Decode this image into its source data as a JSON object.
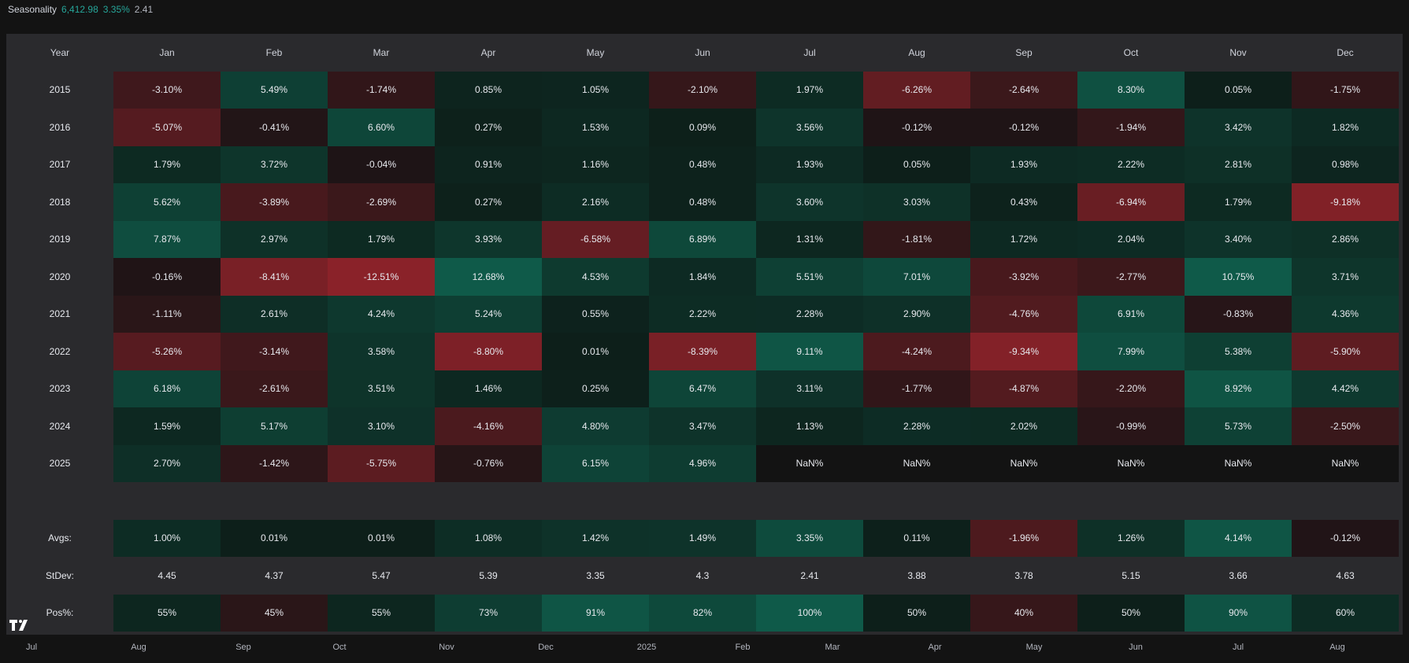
{
  "topbar": {
    "title": "Seasonality",
    "price": "6,412.98",
    "pct": "3.35%",
    "extra": "2.41"
  },
  "headers": [
    "Year",
    "Jan",
    "Feb",
    "Mar",
    "Apr",
    "May",
    "Jun",
    "Jul",
    "Aug",
    "Sep",
    "Oct",
    "Nov",
    "Dec"
  ],
  "rows": [
    {
      "label": "2015",
      "values": [
        "-3.10%",
        "5.49%",
        "-1.74%",
        "0.85%",
        "1.05%",
        "-2.10%",
        "1.97%",
        "-6.26%",
        "-2.64%",
        "8.30%",
        "0.05%",
        "-1.75%"
      ],
      "nums": [
        -3.1,
        5.49,
        -1.74,
        0.85,
        1.05,
        -2.1,
        1.97,
        -6.26,
        -2.64,
        8.3,
        0.05,
        -1.75
      ]
    },
    {
      "label": "2016",
      "values": [
        "-5.07%",
        "-0.41%",
        "6.60%",
        "0.27%",
        "1.53%",
        "0.09%",
        "3.56%",
        "-0.12%",
        "-0.12%",
        "-1.94%",
        "3.42%",
        "1.82%"
      ],
      "nums": [
        -5.07,
        -0.41,
        6.6,
        0.27,
        1.53,
        0.09,
        3.56,
        -0.12,
        -0.12,
        -1.94,
        3.42,
        1.82
      ]
    },
    {
      "label": "2017",
      "values": [
        "1.79%",
        "3.72%",
        "-0.04%",
        "0.91%",
        "1.16%",
        "0.48%",
        "1.93%",
        "0.05%",
        "1.93%",
        "2.22%",
        "2.81%",
        "0.98%"
      ],
      "nums": [
        1.79,
        3.72,
        -0.04,
        0.91,
        1.16,
        0.48,
        1.93,
        0.05,
        1.93,
        2.22,
        2.81,
        0.98
      ]
    },
    {
      "label": "2018",
      "values": [
        "5.62%",
        "-3.89%",
        "-2.69%",
        "0.27%",
        "2.16%",
        "0.48%",
        "3.60%",
        "3.03%",
        "0.43%",
        "-6.94%",
        "1.79%",
        "-9.18%"
      ],
      "nums": [
        5.62,
        -3.89,
        -2.69,
        0.27,
        2.16,
        0.48,
        3.6,
        3.03,
        0.43,
        -6.94,
        1.79,
        -9.18
      ]
    },
    {
      "label": "2019",
      "values": [
        "7.87%",
        "2.97%",
        "1.79%",
        "3.93%",
        "-6.58%",
        "6.89%",
        "1.31%",
        "-1.81%",
        "1.72%",
        "2.04%",
        "3.40%",
        "2.86%"
      ],
      "nums": [
        7.87,
        2.97,
        1.79,
        3.93,
        -6.58,
        6.89,
        1.31,
        -1.81,
        1.72,
        2.04,
        3.4,
        2.86
      ]
    },
    {
      "label": "2020",
      "values": [
        "-0.16%",
        "-8.41%",
        "-12.51%",
        "12.68%",
        "4.53%",
        "1.84%",
        "5.51%",
        "7.01%",
        "-3.92%",
        "-2.77%",
        "10.75%",
        "3.71%"
      ],
      "nums": [
        -0.16,
        -8.41,
        -12.51,
        12.68,
        4.53,
        1.84,
        5.51,
        7.01,
        -3.92,
        -2.77,
        10.75,
        3.71
      ]
    },
    {
      "label": "2021",
      "values": [
        "-1.11%",
        "2.61%",
        "4.24%",
        "5.24%",
        "0.55%",
        "2.22%",
        "2.28%",
        "2.90%",
        "-4.76%",
        "6.91%",
        "-0.83%",
        "4.36%"
      ],
      "nums": [
        -1.11,
        2.61,
        4.24,
        5.24,
        0.55,
        2.22,
        2.28,
        2.9,
        -4.76,
        6.91,
        -0.83,
        4.36
      ]
    },
    {
      "label": "2022",
      "values": [
        "-5.26%",
        "-3.14%",
        "3.58%",
        "-8.80%",
        "0.01%",
        "-8.39%",
        "9.11%",
        "-4.24%",
        "-9.34%",
        "7.99%",
        "5.38%",
        "-5.90%"
      ],
      "nums": [
        -5.26,
        -3.14,
        3.58,
        -8.8,
        0.01,
        -8.39,
        9.11,
        -4.24,
        -9.34,
        7.99,
        5.38,
        -5.9
      ]
    },
    {
      "label": "2023",
      "values": [
        "6.18%",
        "-2.61%",
        "3.51%",
        "1.46%",
        "0.25%",
        "6.47%",
        "3.11%",
        "-1.77%",
        "-4.87%",
        "-2.20%",
        "8.92%",
        "4.42%"
      ],
      "nums": [
        6.18,
        -2.61,
        3.51,
        1.46,
        0.25,
        6.47,
        3.11,
        -1.77,
        -4.87,
        -2.2,
        8.92,
        4.42
      ]
    },
    {
      "label": "2024",
      "values": [
        "1.59%",
        "5.17%",
        "3.10%",
        "-4.16%",
        "4.80%",
        "3.47%",
        "1.13%",
        "2.28%",
        "2.02%",
        "-0.99%",
        "5.73%",
        "-2.50%"
      ],
      "nums": [
        1.59,
        5.17,
        3.1,
        -4.16,
        4.8,
        3.47,
        1.13,
        2.28,
        2.02,
        -0.99,
        5.73,
        -2.5
      ]
    },
    {
      "label": "2025",
      "values": [
        "2.70%",
        "-1.42%",
        "-5.75%",
        "-0.76%",
        "6.15%",
        "4.96%",
        "NaN%",
        "NaN%",
        "NaN%",
        "NaN%",
        "NaN%",
        "NaN%"
      ],
      "nums": [
        2.7,
        -1.42,
        -5.75,
        -0.76,
        6.15,
        4.96,
        null,
        null,
        null,
        null,
        null,
        null
      ]
    }
  ],
  "stats": [
    {
      "label": "Avgs:",
      "values": [
        "1.00%",
        "0.01%",
        "0.01%",
        "1.08%",
        "1.42%",
        "1.49%",
        "3.35%",
        "0.11%",
        "-1.96%",
        "1.26%",
        "4.14%",
        "-0.12%"
      ],
      "nums": [
        1.0,
        0.01,
        0.01,
        1.08,
        1.42,
        1.49,
        3.35,
        0.11,
        -1.96,
        1.26,
        4.14,
        -0.12
      ],
      "colored": true
    },
    {
      "label": "StDev:",
      "values": [
        "4.45",
        "4.37",
        "5.47",
        "5.39",
        "3.35",
        "4.3",
        "2.41",
        "3.88",
        "3.78",
        "5.15",
        "3.66",
        "4.63"
      ],
      "colored": false
    },
    {
      "label": "Pos%:",
      "values": [
        "55%",
        "45%",
        "55%",
        "73%",
        "91%",
        "82%",
        "100%",
        "50%",
        "40%",
        "50%",
        "90%",
        "60%"
      ],
      "nums": [
        55,
        45,
        55,
        73,
        91,
        82,
        100,
        50,
        40,
        50,
        90,
        60
      ],
      "colored": true,
      "pos": true
    }
  ],
  "xaxis": [
    "Jul",
    "Aug",
    "Sep",
    "Oct",
    "Nov",
    "Dec",
    "2025",
    "Feb",
    "Mar",
    "Apr",
    "May",
    "Jun",
    "Jul",
    "Aug"
  ],
  "colors": {
    "pos_strong": "#0f5a49",
    "pos_weak": "#0d1f1a",
    "neg_strong": "#8a2229",
    "neg_weak": "#1e1416",
    "nan_bg": "#131313",
    "panel": "#2a2a2d",
    "green_text": "#26a69a"
  }
}
